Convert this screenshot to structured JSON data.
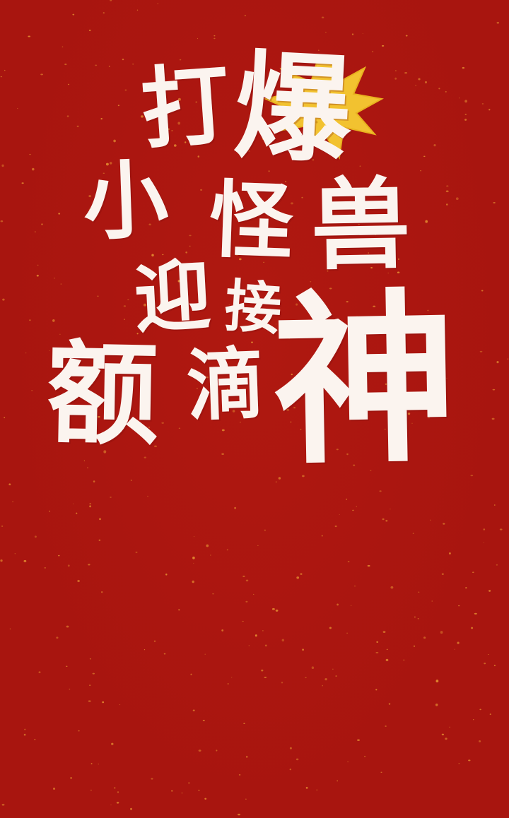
{
  "poster": {
    "background_color": "#a8150f",
    "speck_color": "#e0872f",
    "text_color": "#fbf4ef",
    "burst_color": "#f2c230",
    "headline": {
      "char_1": "打",
      "char_2": "爆",
      "char_3": "小",
      "char_4": "怪",
      "char_5": "兽",
      "char_6": "迎",
      "char_7": "接",
      "char_8": "额",
      "char_9": "滴",
      "char_10": "神"
    },
    "burst_icon": "starburst-icon"
  }
}
